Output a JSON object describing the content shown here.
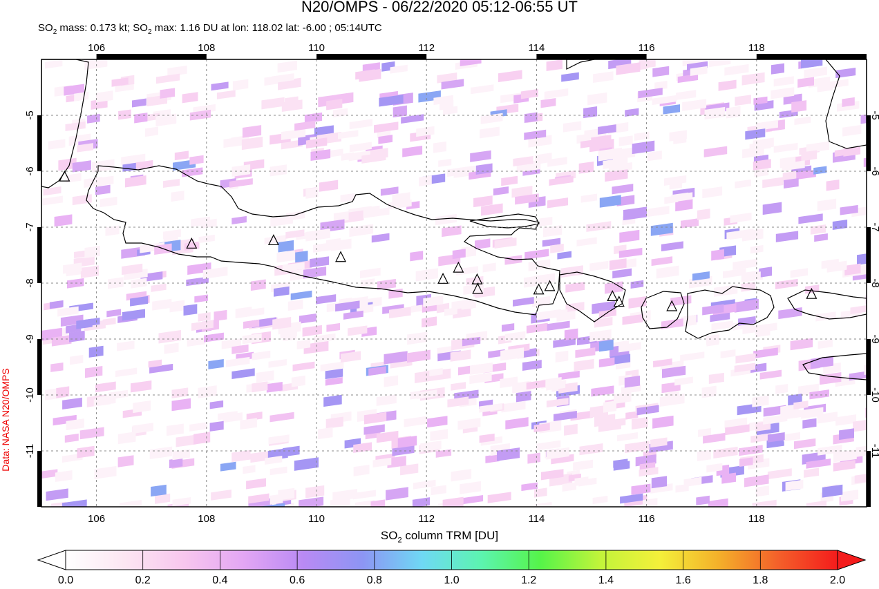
{
  "title": "N20/OMPS - 06/22/2020 05:12-06:55 UT",
  "subtitle": {
    "prefix": "SO",
    "sub": "2",
    "mid1": " mass: 0.173 kt; SO",
    "sub2": "2",
    "rest": " max: 1.16 DU at lon: 118.02 lat: -6.00 ; 05:14UTC"
  },
  "credit": "Data: NASA N20/OMPS",
  "map": {
    "lon_range": [
      105,
      120
    ],
    "lat_range": [
      -12,
      -4
    ],
    "lon_ticks": [
      "106",
      "108",
      "110",
      "112",
      "114",
      "116",
      "118"
    ],
    "lat_ticks": [
      "-5",
      "-6",
      "-7",
      "-8",
      "-9",
      "-10",
      "-11"
    ],
    "volcanoes_lonlat": [
      [
        105.42,
        -6.1
      ],
      [
        107.73,
        -7.3
      ],
      [
        109.22,
        -7.24
      ],
      [
        110.44,
        -7.54
      ],
      [
        112.3,
        -7.93
      ],
      [
        112.58,
        -7.73
      ],
      [
        112.92,
        -7.94
      ],
      [
        112.93,
        -8.11
      ],
      [
        114.04,
        -8.12
      ],
      [
        114.24,
        -8.06
      ],
      [
        115.38,
        -8.24
      ],
      [
        115.5,
        -8.34
      ],
      [
        116.46,
        -8.42
      ],
      [
        119.0,
        -8.2
      ]
    ]
  },
  "colorbar": {
    "label_main": "SO",
    "label_sub": "2",
    "label_rest": " column TRM [DU]",
    "ticks": [
      "0.0",
      "0.2",
      "0.4",
      "0.6",
      "0.8",
      "1.0",
      "1.2",
      "1.4",
      "1.6",
      "1.8",
      "2.0"
    ],
    "range": [
      0,
      2
    ],
    "colors": [
      "#ffffff",
      "#fce6f2",
      "#f7c6ee",
      "#e3a6f4",
      "#b98af4",
      "#8d95f4",
      "#6fd8f4",
      "#5cf4b0",
      "#56f449",
      "#c2f43a",
      "#f4f03a",
      "#f4b02a",
      "#f4602a",
      "#f41c1c"
    ]
  },
  "legend_colors": {
    "credit": "#e00000",
    "frame": "#000000",
    "grid": "#888888"
  }
}
